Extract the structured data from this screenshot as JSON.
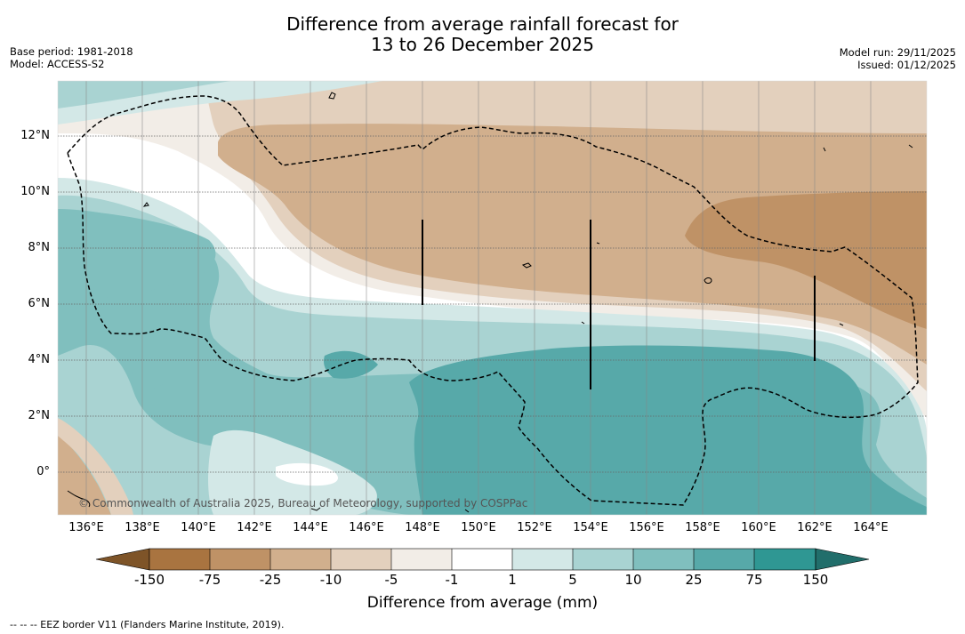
{
  "title": {
    "line1": "Difference from average rainfall forecast for",
    "line2": "13 to 26 December 2025"
  },
  "meta_left": {
    "base_period": "Base period: 1981-2018",
    "model": "Model: ACCESS-S2"
  },
  "meta_right": {
    "model_run": "Model run: 29/11/2025",
    "issued": "Issued: 01/12/2025"
  },
  "map": {
    "copyright": "© Commonwealth of Australia 2025, Bureau of Meteorology, supported by COSPPac",
    "lat_labels": [
      "12°N",
      "10°N",
      "8°N",
      "6°N",
      "4°N",
      "2°N",
      "0°"
    ],
    "lon_labels": [
      "136°E",
      "138°E",
      "140°E",
      "142°E",
      "144°E",
      "146°E",
      "148°E",
      "150°E",
      "152°E",
      "154°E",
      "156°E",
      "158°E",
      "160°E",
      "162°E",
      "164°E"
    ]
  },
  "colorbar": {
    "title": "Difference from average (mm)",
    "labels": [
      "-150",
      "-75",
      "-25",
      "-10",
      "-5",
      "-1",
      "1",
      "5",
      "10",
      "25",
      "75",
      "150"
    ],
    "colors": [
      "#7e5428",
      "#a97440",
      "#bf9266",
      "#d1af8d",
      "#e3d0bd",
      "#f2ede7",
      "#ffffff",
      "#d3e8e7",
      "#a9d3d2",
      "#80bfbe",
      "#57a9a9",
      "#2f9793",
      "#216e6b"
    ]
  },
  "footnote": "--  --  -- EEZ border V11 (Flanders Marine Institute, 2019)."
}
